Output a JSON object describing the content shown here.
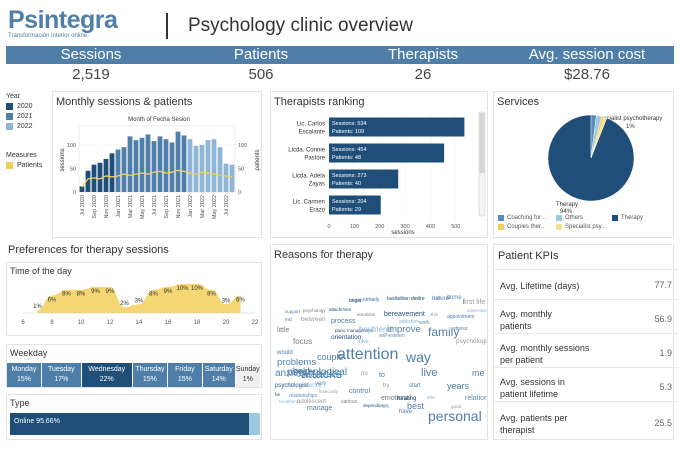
{
  "header": {
    "logo_text": "Psintegra",
    "logo_tagline": "Transformación interior online.",
    "title": "Psychology clinic overview"
  },
  "kpis": [
    {
      "label": "Sessions",
      "value": "2,519"
    },
    {
      "label": "Patients",
      "value": "506"
    },
    {
      "label": "Therapists",
      "value": "26"
    },
    {
      "label": "Avg. session cost",
      "value": "$28.76"
    }
  ],
  "colors": {
    "accent": "#4f7fa8",
    "dark_blue": "#1f4e79",
    "mid_blue": "#5b8db8",
    "light_blue": "#9ecae1",
    "yellow": "#f2cf5b",
    "grey": "#9a9a9a"
  },
  "legend": {
    "year_title": "Year",
    "years": [
      {
        "label": "2020",
        "color": "#1f4e79"
      },
      {
        "label": "2021",
        "color": "#4f7fa8"
      },
      {
        "label": "2022",
        "color": "#8fb6d6"
      }
    ],
    "measures_title": "Measures",
    "measures": [
      {
        "label": "Patients",
        "color": "#f2cf5b"
      }
    ]
  },
  "monthly": {
    "title": "Monthly sessions & patients",
    "subtitle": "Month of Fecha Sesion",
    "y_left_label": "sessions",
    "y_right_label": "patients"
  },
  "ranking": {
    "title": "Therapists ranking",
    "x_label": "sessions",
    "sessions_prefix": "Sessions:",
    "patients_prefix": "Patients:"
  },
  "services": {
    "title": "Services",
    "slice_labels": {
      "specialist": "Specialist psychotherapy",
      "specialist_pct": "1%",
      "therapy": "Therapy",
      "therapy_pct": "94%"
    },
    "legend": [
      {
        "label": "Coaching for ..",
        "color": "#5b8db8"
      },
      {
        "label": "Others",
        "color": "#9ecae1"
      },
      {
        "label": "Therapy",
        "color": "#1f4e79"
      },
      {
        "label": "Couples ther..",
        "color": "#f2cf5b"
      },
      {
        "label": "Specialist psy..",
        "color": "#f7e08a"
      }
    ]
  },
  "preferences": {
    "title": "Preferences for therapy sessions",
    "time_title": "Time of the day",
    "weekday_title": "Weekday",
    "type_title": "Type",
    "type_label": "Online 95.66%",
    "weekdays": [
      {
        "day": "Monday",
        "pct": "15%"
      },
      {
        "day": "Tuesday",
        "pct": "17%"
      },
      {
        "day": "Wednesday",
        "pct": "22%"
      },
      {
        "day": "Thursday",
        "pct": "15%"
      },
      {
        "day": "Friday",
        "pct": "15%"
      },
      {
        "day": "Saturday",
        "pct": "14%"
      },
      {
        "day": "Sunday",
        "pct": "1%"
      }
    ]
  },
  "reasons": {
    "title": "Reasons for therapy",
    "words": [
      "health",
      "already",
      "but follow",
      "desire",
      "low",
      "some",
      "first life",
      "support",
      "psychology",
      "attachment",
      "understand",
      "eat",
      "between",
      "process",
      "emotions",
      "bereavement",
      "addiction",
      "work",
      "this",
      "appointment",
      "little",
      "panic management",
      "boyfriend",
      "improve",
      "family",
      "stress",
      "focus",
      "orientation",
      "like",
      "self-esteem",
      "psychological",
      "would",
      "problems",
      "couple",
      "attention",
      "way",
      "live",
      "attacks",
      "help",
      "anxiety",
      "psychological",
      "depression",
      "no",
      "to",
      "me",
      "psychologist",
      "dependency",
      "very",
      "by",
      "start",
      "years",
      "he",
      "treatment",
      "relationships",
      "insecurity",
      "control",
      "emotional",
      "healing",
      "she",
      "relationship",
      "adolescent",
      "manage",
      "various",
      "dependence",
      "more",
      "best",
      "good",
      "have",
      "personal",
      "anger",
      "before",
      "evaluation",
      "staff",
      "nature",
      "it",
      "i"
    ]
  },
  "patient_kpis": {
    "title": "Patient KPIs",
    "rows": [
      {
        "label": "Avg. Lifetime (days)",
        "value": "77.7"
      },
      {
        "label": "Avg. monthly patients",
        "value": "56.9"
      },
      {
        "label": "Avg. monthly sessions per patient",
        "value": "1.9"
      },
      {
        "label": "Avg. sessions in patient lifetime",
        "value": "5.3"
      },
      {
        "label": "Avg. patients per therapist",
        "value": "25.5"
      }
    ]
  },
  "chart_data": [
    {
      "type": "bar",
      "name": "Monthly sessions & patients",
      "categories": [
        "Jul 2020",
        "Aug 2020",
        "Sep 2020",
        "Oct 2020",
        "Nov 2020",
        "Dec 2020",
        "Jan 2021",
        "Feb 2021",
        "Mar 2021",
        "Apr 2021",
        "May 2021",
        "Jun 2021",
        "Jul 2021",
        "Aug 2021",
        "Sep 2021",
        "Oct 2021",
        "Nov 2021",
        "Dec 2021",
        "Jan 2022",
        "Feb 2022",
        "Mar 2022",
        "Apr 2022",
        "May 2022",
        "Jun 2022",
        "Jul 2022",
        "Aug 2022"
      ],
      "tick_labels": [
        "Jul 2020",
        "Sep 2020",
        "Nov 2020",
        "Jan 2021",
        "Mar 2021",
        "May 2021",
        "Jul 2021",
        "Sep 2021",
        "Nov 2021",
        "Jan 2022",
        "Mar 2022",
        "May 2022",
        "Jul 2022"
      ],
      "series": [
        {
          "name": "sessions",
          "values": [
            12,
            45,
            58,
            62,
            70,
            82,
            90,
            95,
            118,
            110,
            115,
            122,
            108,
            118,
            112,
            105,
            128,
            120,
            112,
            98,
            100,
            110,
            112,
            95,
            60,
            58
          ]
        },
        {
          "name": "patients",
          "values": [
            10,
            28,
            30,
            28,
            34,
            32,
            34,
            38,
            35,
            38,
            40,
            38,
            42,
            44,
            40,
            42,
            46,
            44,
            40,
            38,
            42,
            40,
            38,
            36,
            34,
            32
          ]
        }
      ],
      "year_of_category": [
        2020,
        2020,
        2020,
        2020,
        2020,
        2020,
        2021,
        2021,
        2021,
        2021,
        2021,
        2021,
        2021,
        2021,
        2021,
        2021,
        2021,
        2021,
        2022,
        2022,
        2022,
        2022,
        2022,
        2022,
        2022,
        2022
      ],
      "y_ticks_left": [
        0,
        50,
        100
      ],
      "y_ticks_right": [
        0,
        50,
        100
      ],
      "ylim": [
        0,
        140
      ]
    },
    {
      "type": "bar",
      "name": "Therapists ranking",
      "orientation": "horizontal",
      "categories": [
        "Lic. Carlos Escalante",
        "Licda. Connie Pastore",
        "Licda. Adela Zayas",
        "Lic. Carmen Erazo"
      ],
      "sessions": [
        534,
        454,
        273,
        204
      ],
      "patients": [
        109,
        48,
        40,
        29
      ],
      "x_ticks": [
        0,
        100,
        200,
        300,
        400,
        500
      ],
      "xlim": [
        0,
        560
      ]
    },
    {
      "type": "pie",
      "name": "Services",
      "labels": [
        "Therapy",
        "Specialist psychotherapy",
        "Coaching for ..",
        "Others",
        "Couples ther.."
      ],
      "values": [
        94,
        1,
        2,
        2,
        1
      ]
    },
    {
      "type": "area",
      "name": "Time of the day",
      "x": [
        7,
        8,
        9,
        10,
        11,
        12,
        13,
        14,
        15,
        16,
        17,
        18,
        19,
        20,
        21
      ],
      "values": [
        1,
        6,
        8,
        8,
        9,
        9,
        2,
        3,
        8,
        9,
        10,
        10,
        8,
        3,
        6
      ],
      "labels": [
        "1%",
        "6%",
        "8%",
        "8%",
        "9%",
        "9%",
        "2%",
        "3%",
        "8%",
        "9%",
        "10%",
        "10%",
        "8%",
        "3%",
        "6%"
      ],
      "x_ticks": [
        6,
        8,
        10,
        12,
        14,
        16,
        18,
        20,
        22
      ],
      "xlim": [
        6,
        22
      ]
    },
    {
      "type": "bar",
      "name": "Weekday",
      "categories": [
        "Monday",
        "Tuesday",
        "Wednesday",
        "Thursday",
        "Friday",
        "Saturday",
        "Sunday"
      ],
      "values": [
        15,
        17,
        22,
        15,
        15,
        14,
        1
      ]
    },
    {
      "type": "bar",
      "name": "Type",
      "categories": [
        "Online",
        "Other"
      ],
      "values": [
        95.66,
        4.34
      ]
    }
  ]
}
